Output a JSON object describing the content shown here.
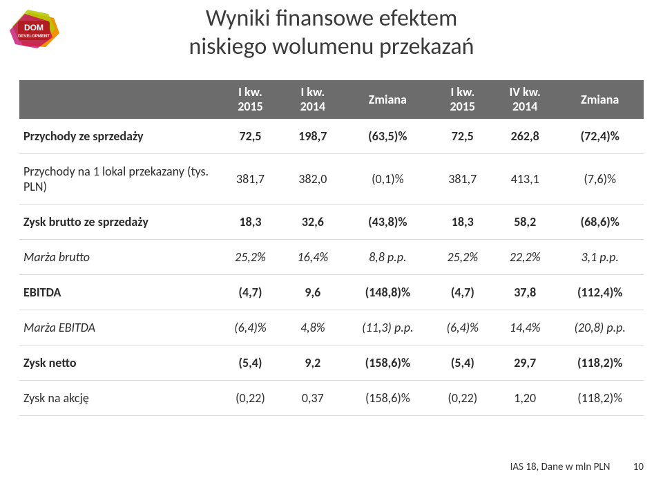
{
  "logo": {
    "top_label": "DOM",
    "bottom_label": "DEVELOPMENT",
    "colors": {
      "badge": "#b11d23",
      "shape_orange": "#f39200",
      "shape_green": "#b1c800",
      "shape_magenta": "#c3006b",
      "text": "#ffffff"
    }
  },
  "title": {
    "line1": "Wyniki finansowe efektem",
    "line2": "niskiego wolumenu przekazań"
  },
  "table": {
    "headers": {
      "col0": "",
      "col1_top": "I kw.",
      "col1_bot": "2015",
      "col2_top": "I kw.",
      "col2_bot": "2014",
      "col3": "Zmiana",
      "col4_top": "I kw.",
      "col4_bot": "2015",
      "col5_top": "IV kw.",
      "col5_bot": "2014",
      "col6": "Zmiana"
    },
    "rows": [
      {
        "style": "bold",
        "label": "Przychody ze sprzedaży",
        "c1": "72,5",
        "c2": "198,7",
        "c3": "(63,5)%",
        "c4": "72,5",
        "c5": "262,8",
        "c6": "(72,4)%"
      },
      {
        "style": "",
        "label": "Przychody na 1 lokal przekazany (tys. PLN)",
        "c1": "381,7",
        "c2": "382,0",
        "c3": "(0,1)%",
        "c4": "381,7",
        "c5": "413,1",
        "c6": "(7,6)%"
      },
      {
        "style": "bold",
        "label": "Zysk brutto ze sprzedaży",
        "c1": "18,3",
        "c2": "32,6",
        "c3": "(43,8)%",
        "c4": "18,3",
        "c5": "58,2",
        "c6": "(68,6)%"
      },
      {
        "style": "italic",
        "label": "Marża brutto",
        "c1": "25,2%",
        "c2": "16,4%",
        "c3": "8,8 p.p.",
        "c4": "25,2%",
        "c5": "22,2%",
        "c6": "3,1 p.p."
      },
      {
        "style": "bold",
        "label": "EBITDA",
        "c1": "(4,7)",
        "c2": "9,6",
        "c3": "(148,8)%",
        "c4": "(4,7)",
        "c5": "37,8",
        "c6": "(112,4)%"
      },
      {
        "style": "italic",
        "label": "Marża EBITDA",
        "c1": "(6,4)%",
        "c2": "4,8%",
        "c3": "(11,3) p.p.",
        "c4": "(6,4)%",
        "c5": "14,4%",
        "c6": "(20,8) p.p."
      },
      {
        "style": "bold",
        "label": "Zysk netto",
        "c1": "(5,4)",
        "c2": "9,2",
        "c3": "(158,6)%",
        "c4": "(5,4)",
        "c5": "29,7",
        "c6": "(118,2)%"
      },
      {
        "style": "",
        "label": "Zysk na akcję",
        "c1": "(0,22)",
        "c2": "0,37",
        "c3": "(158,6)%",
        "c4": "(0,22)",
        "c5": "1,20",
        "c6": "(118,2)%"
      }
    ]
  },
  "footer": {
    "note": "IAS 18, Dane w mln PLN",
    "page": "10"
  }
}
